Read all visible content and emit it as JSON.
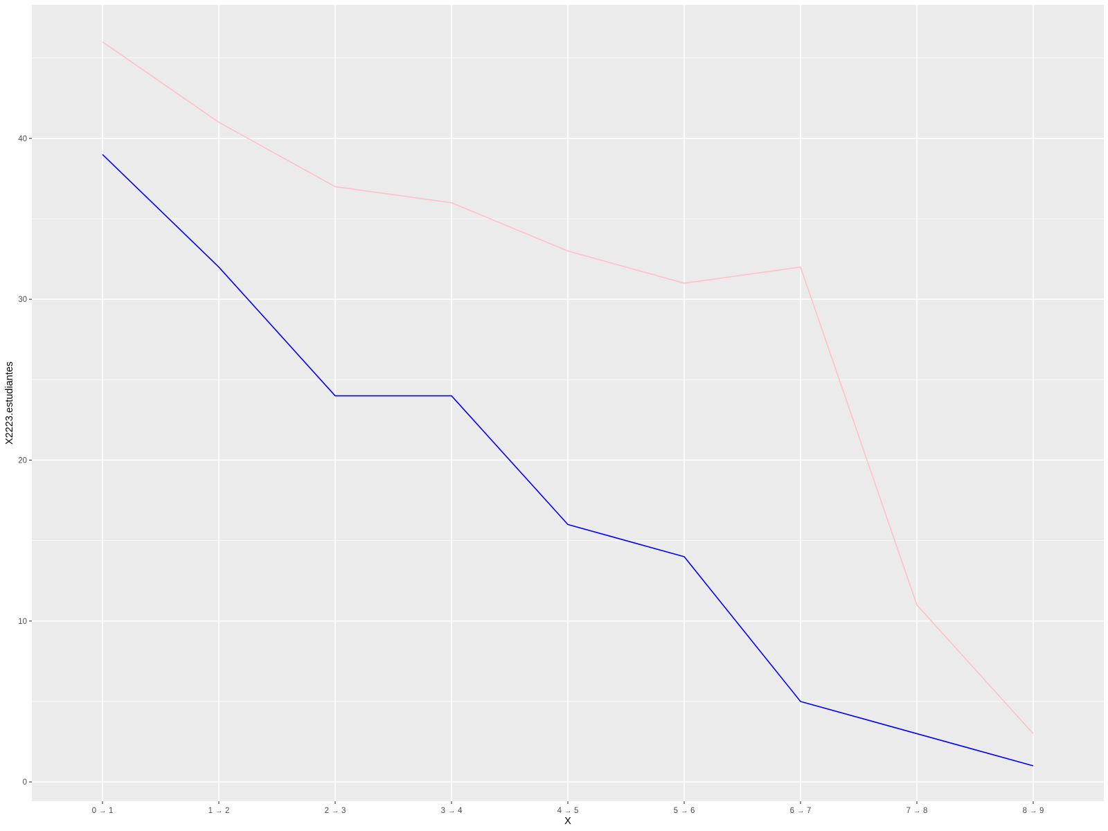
{
  "chart_data": {
    "type": "line",
    "xlabel": "X",
    "ylabel": "X2223.estudiantes",
    "categories": [
      "0 → 1",
      "1 → 2",
      "2 → 3",
      "3 → 4",
      "4 → 5",
      "5 → 6",
      "6 → 7",
      "7 → 8",
      "8 → 9"
    ],
    "ylim": [
      -1.2,
      48.3
    ],
    "yticks": [
      0,
      10,
      20,
      30,
      40
    ],
    "grid": true,
    "legend": "none",
    "panel_color": "#ebebeb",
    "series": [
      {
        "color": "#ffc0cb",
        "values": [
          46,
          41,
          37,
          36,
          33,
          31,
          32,
          11,
          3
        ]
      },
      {
        "color": "#0000ff",
        "values": [
          39,
          32,
          24,
          24,
          16,
          14,
          5,
          3,
          1
        ]
      }
    ]
  }
}
